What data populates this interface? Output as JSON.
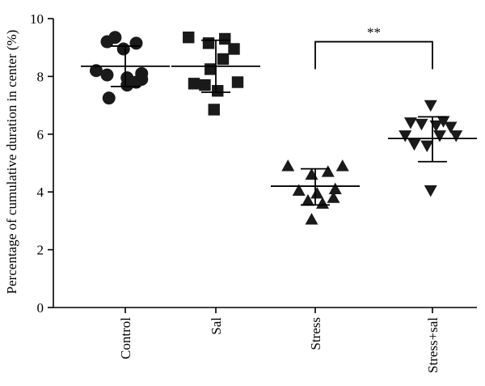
{
  "chart_data": {
    "type": "scatter",
    "ylabel": "Percentage of cumulative duration in center (%)",
    "xlabel": "",
    "ylim": [
      0,
      10
    ],
    "yticks": [
      0,
      2,
      4,
      6,
      8,
      10
    ],
    "categories": [
      "Control",
      "Sal",
      "Stress",
      "Stress+sal"
    ],
    "groups": [
      {
        "category": "Control",
        "marker": "circle",
        "points": [
          [
            -0.5,
            9.2
          ],
          [
            -0.28,
            9.35
          ],
          [
            0.3,
            9.15
          ],
          [
            -0.05,
            8.95
          ],
          [
            -0.8,
            8.2
          ],
          [
            0.45,
            8.1
          ],
          [
            -0.5,
            8.05
          ],
          [
            0.05,
            7.95
          ],
          [
            0.45,
            7.9
          ],
          [
            0.3,
            7.8
          ],
          [
            0.05,
            7.7
          ],
          [
            -0.45,
            7.25
          ]
        ],
        "mean": 8.35,
        "sd_low": 7.65,
        "sd_high": 9.05
      },
      {
        "category": "Sal",
        "marker": "square",
        "points": [
          [
            -0.75,
            9.35
          ],
          [
            0.25,
            9.3
          ],
          [
            -0.2,
            9.15
          ],
          [
            0.5,
            8.95
          ],
          [
            0.2,
            8.6
          ],
          [
            -0.15,
            8.25
          ],
          [
            0.6,
            7.8
          ],
          [
            -0.6,
            7.75
          ],
          [
            -0.3,
            7.7
          ],
          [
            0.05,
            7.5
          ],
          [
            -0.05,
            6.85
          ]
        ],
        "mean": 8.35,
        "sd_low": 7.45,
        "sd_high": 9.25
      },
      {
        "category": "Stress",
        "marker": "triangle-up",
        "points": [
          [
            -0.75,
            4.9
          ],
          [
            0.75,
            4.9
          ],
          [
            0.35,
            4.7
          ],
          [
            -0.1,
            4.6
          ],
          [
            0.55,
            4.1
          ],
          [
            -0.45,
            4.05
          ],
          [
            0.05,
            3.95
          ],
          [
            0.5,
            3.8
          ],
          [
            -0.2,
            3.7
          ],
          [
            0.2,
            3.6
          ],
          [
            -0.1,
            3.05
          ]
        ],
        "mean": 4.2,
        "sd_low": 3.55,
        "sd_high": 4.8
      },
      {
        "category": "Stress+sal",
        "marker": "triangle-down",
        "points": [
          [
            -0.05,
            7.0
          ],
          [
            0.3,
            6.45
          ],
          [
            -0.6,
            6.4
          ],
          [
            -0.3,
            6.35
          ],
          [
            0.1,
            6.3
          ],
          [
            0.5,
            6.25
          ],
          [
            -0.75,
            5.95
          ],
          [
            0.65,
            5.95
          ],
          [
            0.2,
            5.95
          ],
          [
            -0.5,
            5.65
          ],
          [
            -0.15,
            5.6
          ],
          [
            -0.05,
            4.05
          ]
        ],
        "mean": 5.85,
        "sd_low": 5.05,
        "sd_high": 6.6
      }
    ],
    "annotations": [
      {
        "text": "**",
        "from": "Stress",
        "to": "Stress+sal",
        "y": 9.2
      }
    ]
  }
}
